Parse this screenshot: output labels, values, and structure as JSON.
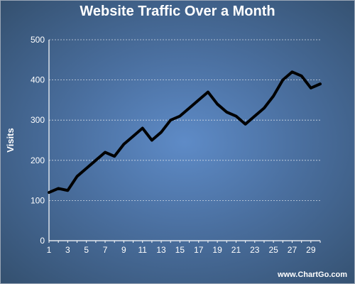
{
  "chart_data": {
    "type": "line",
    "title": "Website Traffic Over a Month",
    "xlabel": "",
    "ylabel": "Visits",
    "x": [
      1,
      2,
      3,
      4,
      5,
      6,
      7,
      8,
      9,
      10,
      11,
      12,
      13,
      14,
      15,
      16,
      17,
      18,
      19,
      20,
      21,
      22,
      23,
      24,
      25,
      26,
      27,
      28,
      29,
      30
    ],
    "x_tick_labels": [
      "1",
      "3",
      "5",
      "7",
      "9",
      "11",
      "13",
      "15",
      "17",
      "19",
      "21",
      "23",
      "25",
      "27",
      "29"
    ],
    "y_ticks": [
      0,
      100,
      200,
      300,
      400,
      500
    ],
    "ylim": [
      0,
      500
    ],
    "xlim": [
      1,
      30
    ],
    "grid": true,
    "series": [
      {
        "name": "",
        "values": [
          120,
          130,
          125,
          160,
          180,
          200,
          220,
          210,
          240,
          260,
          280,
          250,
          270,
          300,
          310,
          330,
          350,
          370,
          340,
          320,
          310,
          290,
          310,
          330,
          360,
          400,
          420,
          410,
          380,
          390
        ]
      }
    ]
  },
  "footer": "www.ChartGo.com",
  "colors": {
    "line": "#000000",
    "grid": "#cfd8e3",
    "text": "#ffffff"
  }
}
